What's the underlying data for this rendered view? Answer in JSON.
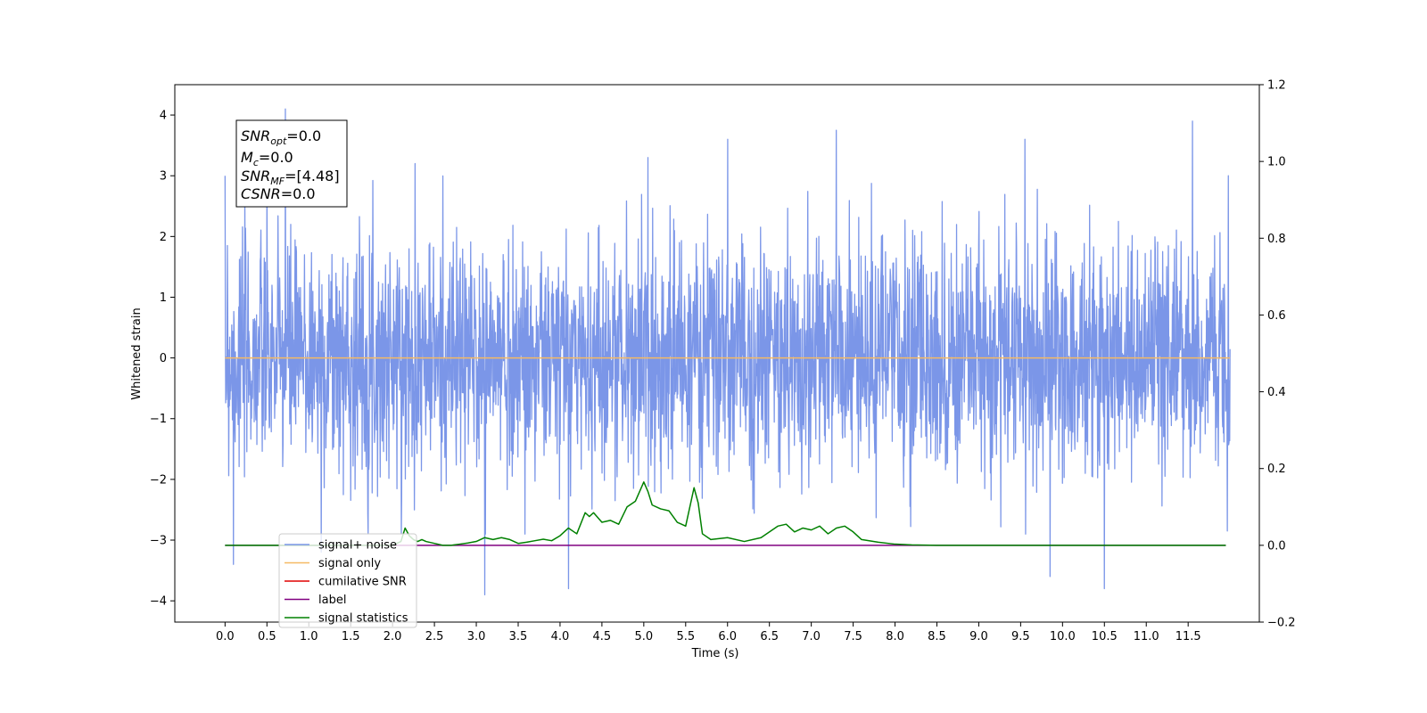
{
  "chart_data": {
    "type": "line",
    "title": "",
    "xlabel": "Time (s)",
    "ylabel": "Whitened strain",
    "y2label": "",
    "xlim": [
      -0.6,
      12.35
    ],
    "ylim": [
      -4.35,
      4.5
    ],
    "y2lim": [
      -0.2,
      1.2
    ],
    "x_ticks": [
      "0.0",
      "0.5",
      "1.0",
      "1.5",
      "2.0",
      "2.5",
      "3.0",
      "3.5",
      "4.0",
      "4.5",
      "5.0",
      "5.5",
      "6.0",
      "6.5",
      "7.0",
      "7.5",
      "8.0",
      "8.5",
      "9.0",
      "9.5",
      "10.0",
      "10.5",
      "11.0",
      "11.5"
    ],
    "y_ticks": [
      "4",
      "3",
      "2",
      "1",
      "0",
      "−1",
      "−2",
      "−3",
      "−4"
    ],
    "y2_ticks": [
      "1.2",
      "1.0",
      "0.8",
      "0.6",
      "0.4",
      "0.2",
      "0.0",
      "−0.2"
    ],
    "grid": false,
    "legend_position": "lower-left",
    "annotation": {
      "lines": [
        {
          "main": "SNR",
          "sub": "opt",
          "rest": "=0.0"
        },
        {
          "main": "M",
          "sub": "c",
          "rest": "=0.0"
        },
        {
          "main": "SNR",
          "sub": "MF",
          "rest": "=[4.48]"
        },
        {
          "main": "CSNR",
          "sub": "",
          "rest": "=0.0"
        }
      ]
    },
    "series": [
      {
        "name": "signal+ noise",
        "color": "#7b96e8",
        "axis": "left",
        "x_range": [
          0.0,
          12.0
        ],
        "description": "whitened noise, std ~1, spikes to about +4.1 / -3.9",
        "peaks": [
          {
            "x": 0.03,
            "y": 1.85
          },
          {
            "x": 0.1,
            "y": -3.4
          },
          {
            "x": 0.72,
            "y": 4.1
          },
          {
            "x": 1.15,
            "y": -3.2
          },
          {
            "x": 2.27,
            "y": 3.2
          },
          {
            "x": 3.1,
            "y": -3.9
          },
          {
            "x": 4.1,
            "y": -3.8
          },
          {
            "x": 5.05,
            "y": 3.3
          },
          {
            "x": 6.0,
            "y": 3.6
          },
          {
            "x": 7.3,
            "y": 3.75
          },
          {
            "x": 9.55,
            "y": 3.6
          },
          {
            "x": 9.85,
            "y": -3.6
          },
          {
            "x": 10.5,
            "y": -3.8
          },
          {
            "x": 11.55,
            "y": 3.9
          },
          {
            "x": 11.98,
            "y": 3.0
          }
        ]
      },
      {
        "name": "signal only",
        "color": "#f5b964",
        "axis": "left",
        "x": [
          0.0,
          12.0
        ],
        "y": [
          0.0,
          0.0
        ]
      },
      {
        "name": "cumilative SNR",
        "color": "#e00000",
        "axis": "right",
        "x": [],
        "y": []
      },
      {
        "name": "label",
        "color": "#800080",
        "axis": "right",
        "x": [
          0.0,
          11.95
        ],
        "y": [
          0.0,
          0.0
        ]
      },
      {
        "name": "signal statistics",
        "color": "#008000",
        "axis": "right",
        "x": [
          0.0,
          1.0,
          2.0,
          2.05,
          2.1,
          2.15,
          2.2,
          2.25,
          2.3,
          2.35,
          2.4,
          2.5,
          2.6,
          2.7,
          2.8,
          2.9,
          3.0,
          3.1,
          3.2,
          3.3,
          3.4,
          3.5,
          3.6,
          3.7,
          3.8,
          3.9,
          4.0,
          4.1,
          4.2,
          4.3,
          4.35,
          4.4,
          4.5,
          4.6,
          4.7,
          4.8,
          4.9,
          5.0,
          5.05,
          5.1,
          5.2,
          5.3,
          5.4,
          5.5,
          5.6,
          5.65,
          5.7,
          5.8,
          6.0,
          6.2,
          6.4,
          6.6,
          6.7,
          6.8,
          6.9,
          7.0,
          7.1,
          7.2,
          7.3,
          7.4,
          7.5,
          7.6,
          7.8,
          8.0,
          8.2,
          8.5,
          9.0,
          10.0,
          11.0,
          11.95
        ],
        "y": [
          0.0,
          0.0,
          0.0,
          0.005,
          0.01,
          0.045,
          0.025,
          0.015,
          0.01,
          0.015,
          0.01,
          0.005,
          0.0,
          0.0,
          0.003,
          0.006,
          0.01,
          0.02,
          0.015,
          0.02,
          0.015,
          0.005,
          0.008,
          0.012,
          0.016,
          0.012,
          0.025,
          0.045,
          0.03,
          0.085,
          0.075,
          0.085,
          0.06,
          0.065,
          0.055,
          0.1,
          0.115,
          0.165,
          0.14,
          0.105,
          0.095,
          0.09,
          0.06,
          0.05,
          0.15,
          0.11,
          0.03,
          0.015,
          0.02,
          0.01,
          0.02,
          0.05,
          0.055,
          0.035,
          0.045,
          0.04,
          0.05,
          0.03,
          0.045,
          0.05,
          0.035,
          0.015,
          0.008,
          0.003,
          0.001,
          0.0,
          0.0,
          0.0,
          0.0,
          0.0
        ]
      }
    ]
  }
}
